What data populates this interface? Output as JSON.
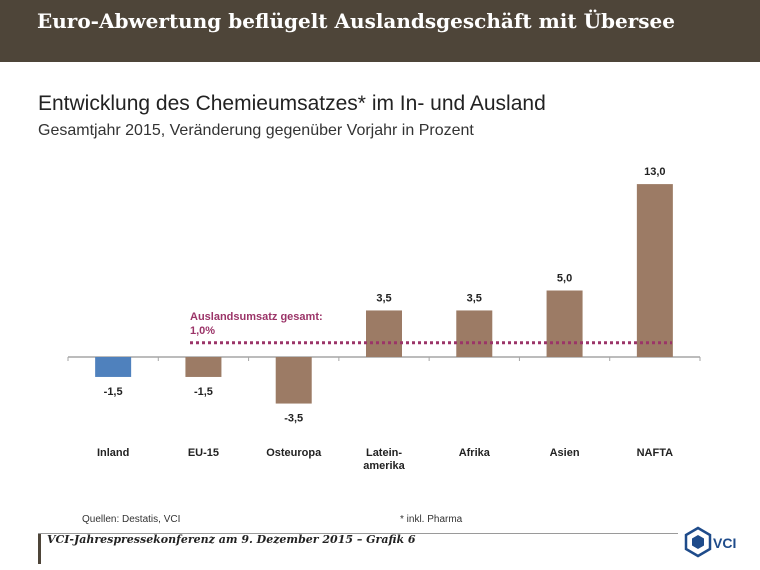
{
  "header": {
    "banner_title": "Euro-Abwertung beflügelt Auslandsgeschäft mit Übersee"
  },
  "chart_data": {
    "type": "bar",
    "title": "Entwicklung des Chemieumsatzes* im In- und Ausland",
    "subtitle": "Gesamtjahr 2015, Veränderung gegenüber Vorjahr in Prozent",
    "categories": [
      [
        "Inland"
      ],
      [
        "EU-15"
      ],
      [
        "Osteuropa"
      ],
      [
        "Latein-",
        "amerika"
      ],
      [
        "Afrika"
      ],
      [
        "Asien"
      ],
      [
        "NAFTA"
      ]
    ],
    "values": [
      -1.5,
      -1.5,
      -3.5,
      3.5,
      3.5,
      5.0,
      13.0
    ],
    "value_labels": [
      "-1,5",
      "-1,5",
      "-3,5",
      "3,5",
      "3,5",
      "5,0",
      "13,0"
    ],
    "bar_colors": [
      "#4f81bd",
      "#9c7b65",
      "#9c7b65",
      "#9c7b65",
      "#9c7b65",
      "#9c7b65",
      "#9c7b65"
    ],
    "reference_line": {
      "value": 1.0,
      "label_line1": "Auslandsumsatz gesamt:",
      "label_line2": "1,0%",
      "color": "#9b3468"
    },
    "ylim": [
      -5,
      14
    ],
    "grid": false
  },
  "footer": {
    "source": "Quellen: Destatis, VCI",
    "footnote": "* inkl. Pharma",
    "conference": "VCI-Jahrespressekonferenz am 9. Dezember 2015 – Grafik 6",
    "logo_text": "VCI"
  },
  "colors": {
    "banner": "#4e4539",
    "bar_brown": "#9c7b65",
    "bar_blue": "#4f81bd",
    "reference": "#9b3468"
  }
}
